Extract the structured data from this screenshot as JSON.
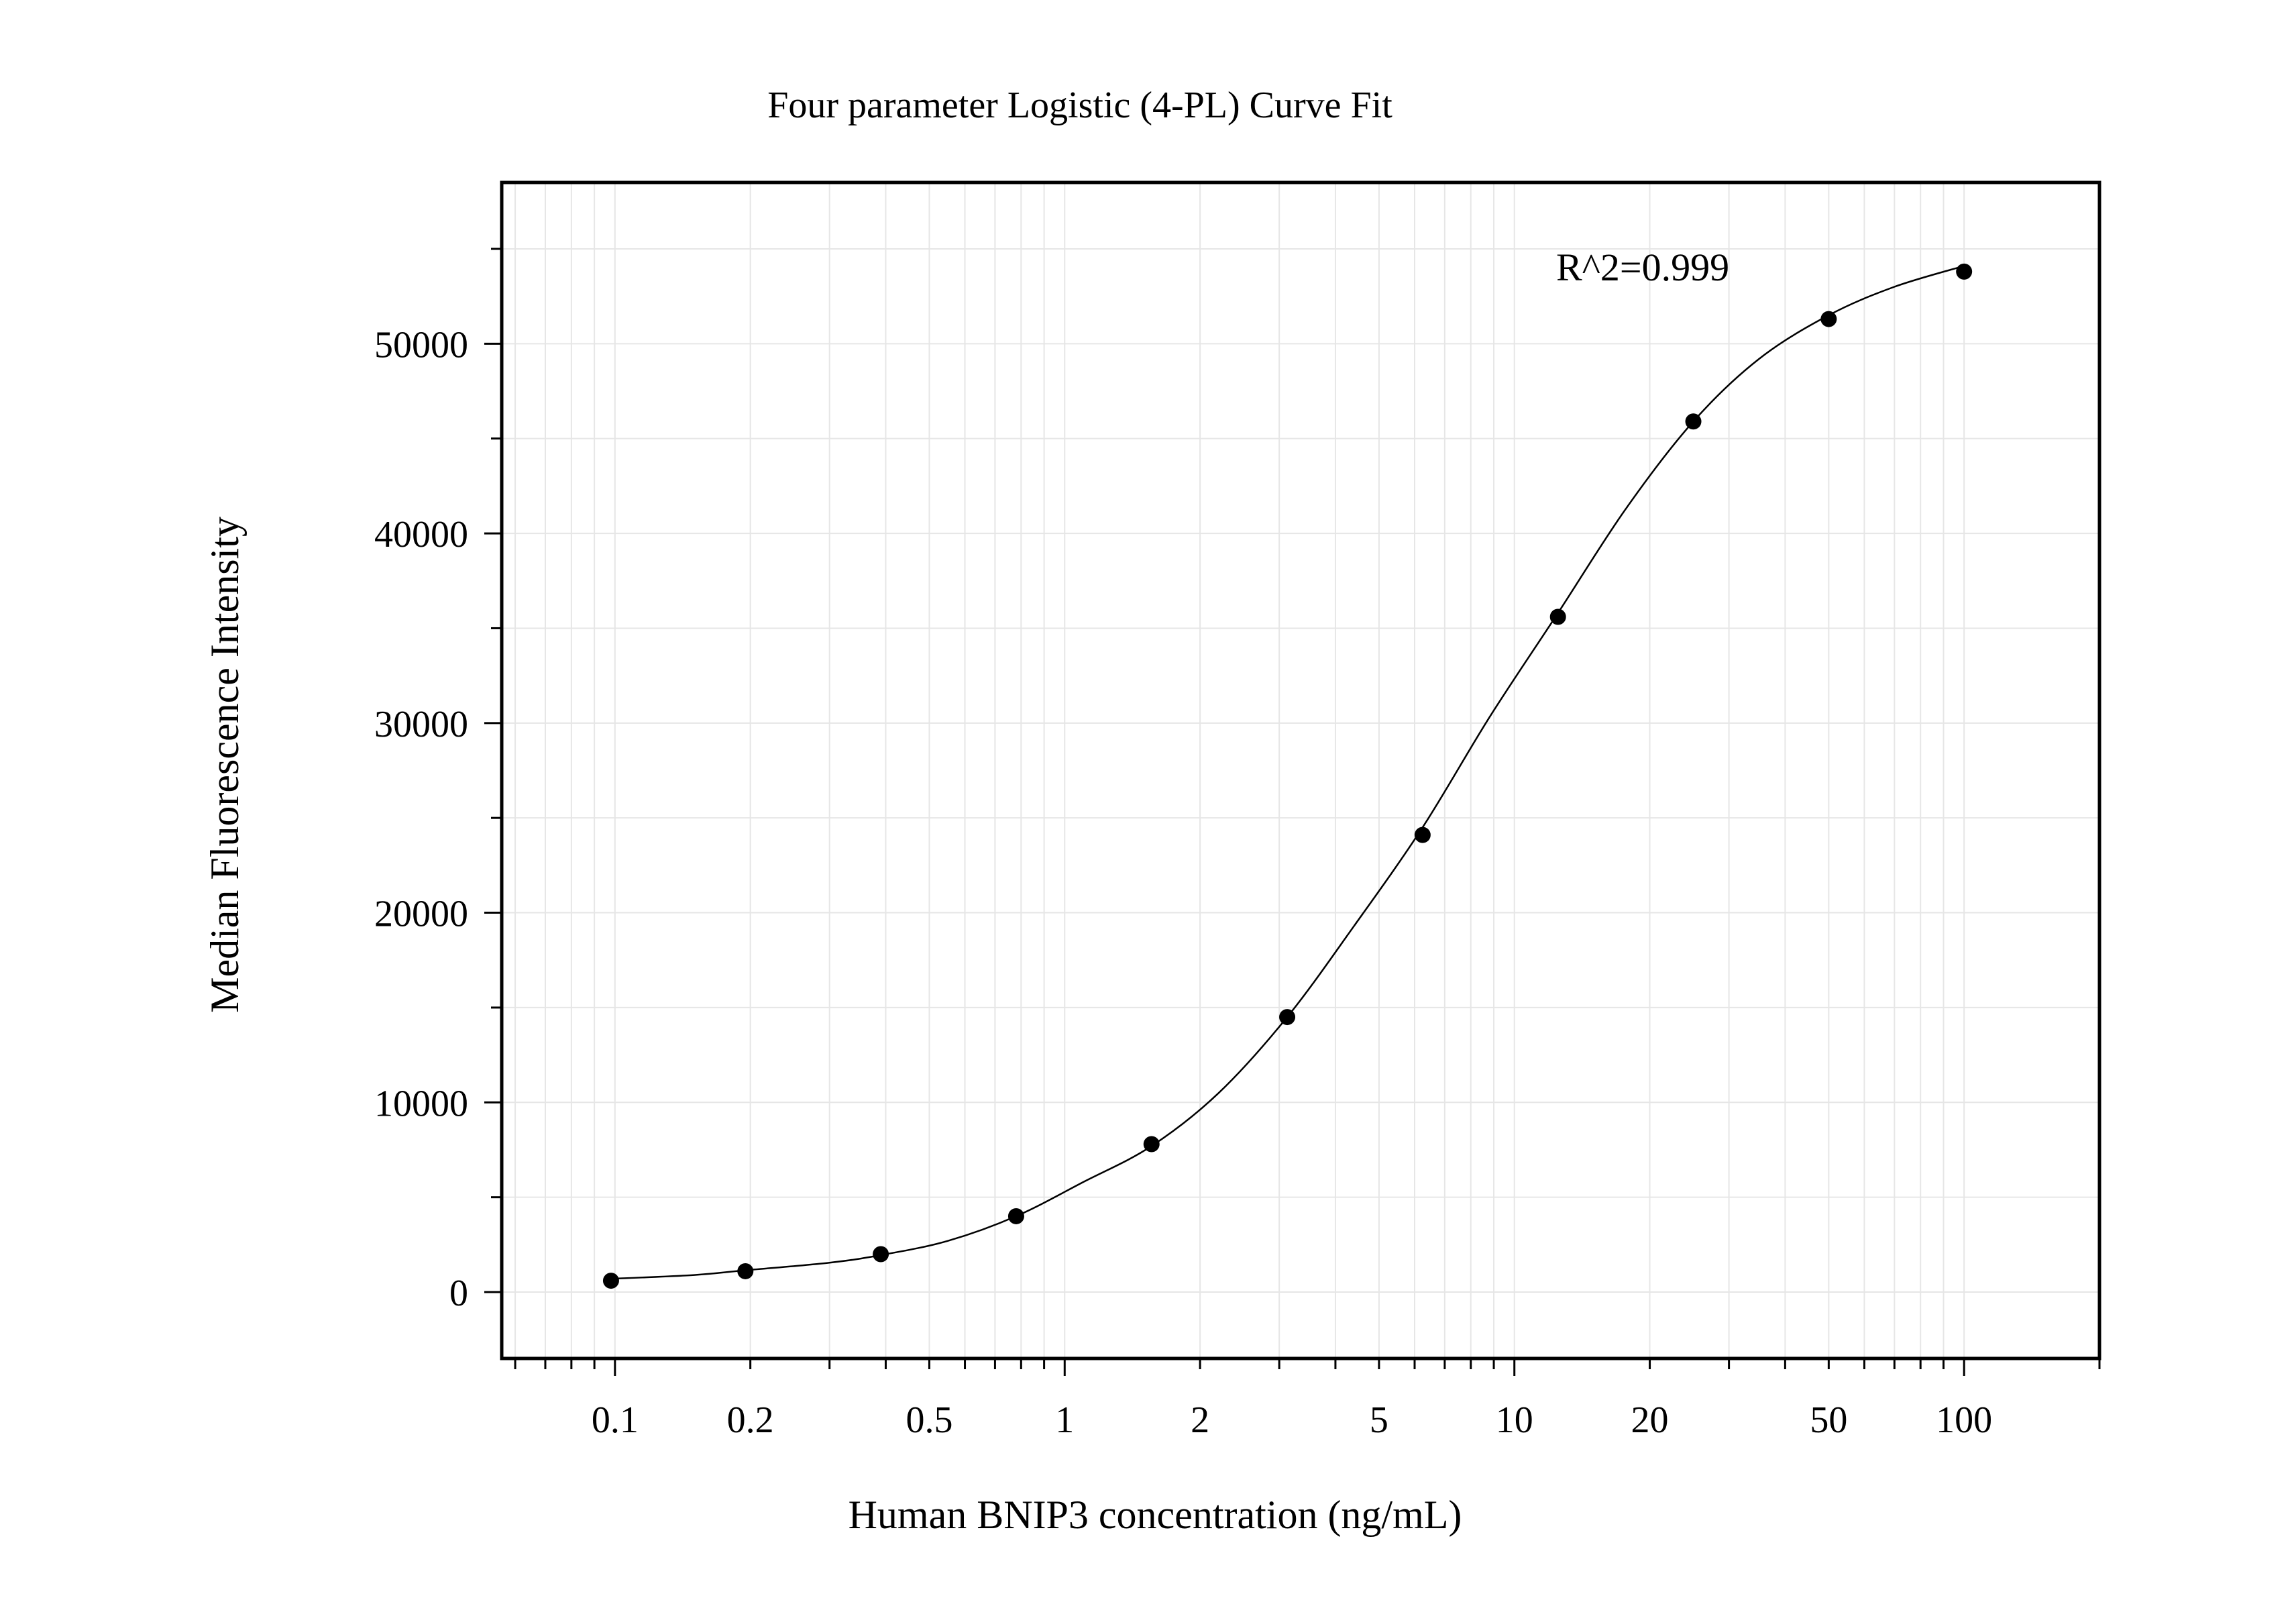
{
  "chart_data": {
    "type": "scatter",
    "title": "Four parameter Logistic (4-PL) Curve Fit",
    "xlabel": "Human BNIP3 concentration (ng/mL)",
    "ylabel": "Median Fluorescence Intensity",
    "x_scale": "log",
    "xlim": [
      0.056,
      200
    ],
    "ylim": [
      -3500,
      58500
    ],
    "x_ticks": [
      0.1,
      0.2,
      0.5,
      1,
      2,
      5,
      10,
      20,
      50,
      100
    ],
    "x_tick_labels": [
      "0.1",
      "0.2",
      "0.5",
      "1",
      "2",
      "5",
      "10",
      "20",
      "50",
      "100"
    ],
    "y_ticks": [
      0,
      10000,
      20000,
      30000,
      40000,
      50000
    ],
    "y_tick_labels": [
      "0",
      "10000",
      "20000",
      "30000",
      "40000",
      "50000"
    ],
    "grid": true,
    "annotation": "R^2=0.999",
    "series": [
      {
        "x": [
          0.098,
          0.195,
          0.39,
          0.78,
          1.56,
          3.125,
          6.25,
          12.5,
          25,
          50,
          100
        ],
        "y": [
          600,
          1100,
          2000,
          4000,
          7800,
          14500,
          24100,
          35600,
          45900,
          51300,
          53800
        ]
      }
    ],
    "fit_curve": {
      "model": "4-PL",
      "x": [
        0.098,
        0.15,
        0.195,
        0.3,
        0.39,
        0.55,
        0.78,
        1.1,
        1.56,
        2.2,
        3.125,
        4.4,
        6.25,
        8.8,
        12.5,
        17.7,
        25,
        35,
        50,
        70,
        100
      ],
      "y": [
        700,
        900,
        1150,
        1550,
        1950,
        2700,
        4000,
        5800,
        7700,
        10500,
        14500,
        19300,
        24500,
        30300,
        35800,
        41300,
        45900,
        49200,
        51500,
        53000,
        54100
      ]
    },
    "colors": {
      "points": "#000000",
      "curve": "#000000",
      "grid": "#e6e6e6",
      "frame": "#000000"
    }
  }
}
